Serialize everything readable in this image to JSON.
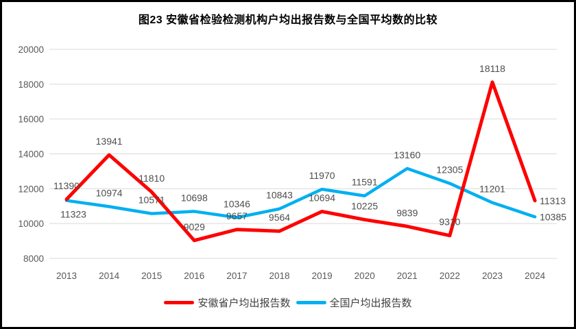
{
  "chart_data": {
    "type": "line",
    "title": "图23 安徽省检验检测机构户均出报告数与全国平均数的比较",
    "xlabel": "",
    "ylabel": "",
    "categories": [
      "2013",
      "2014",
      "2015",
      "2016",
      "2017",
      "2018",
      "2019",
      "2020",
      "2021",
      "2022",
      "2023",
      "2024"
    ],
    "series": [
      {
        "name": "安徽省户均出报告数",
        "color": "#FF0000",
        "values": [
          11390,
          13941,
          11810,
          9029,
          9657,
          9564,
          10694,
          10225,
          9839,
          9310,
          18118,
          11313
        ],
        "label_positions": [
          "above",
          "above",
          "above",
          "above",
          "above",
          "above",
          "above",
          "above",
          "above",
          "above",
          "above",
          "right"
        ]
      },
      {
        "name": "全国户均出报告数",
        "color": "#00B0F0",
        "values": [
          11323,
          10974,
          10571,
          10698,
          10346,
          10843,
          11970,
          11591,
          13160,
          12305,
          11201,
          10385
        ],
        "label_positions": [
          "below",
          "above",
          "above",
          "above",
          "above",
          "above",
          "above",
          "above",
          "above",
          "above",
          "above",
          "right"
        ]
      }
    ],
    "ylim": [
      8000,
      20000
    ],
    "yticks": [
      20000,
      18000,
      16000,
      14000,
      12000,
      10000,
      8000
    ],
    "grid": "horizontal",
    "legend_position": "bottom",
    "gridline_color": "#D9D9D9",
    "axis_text_color": "#595959",
    "data_label_color": "#4d4d4d"
  }
}
